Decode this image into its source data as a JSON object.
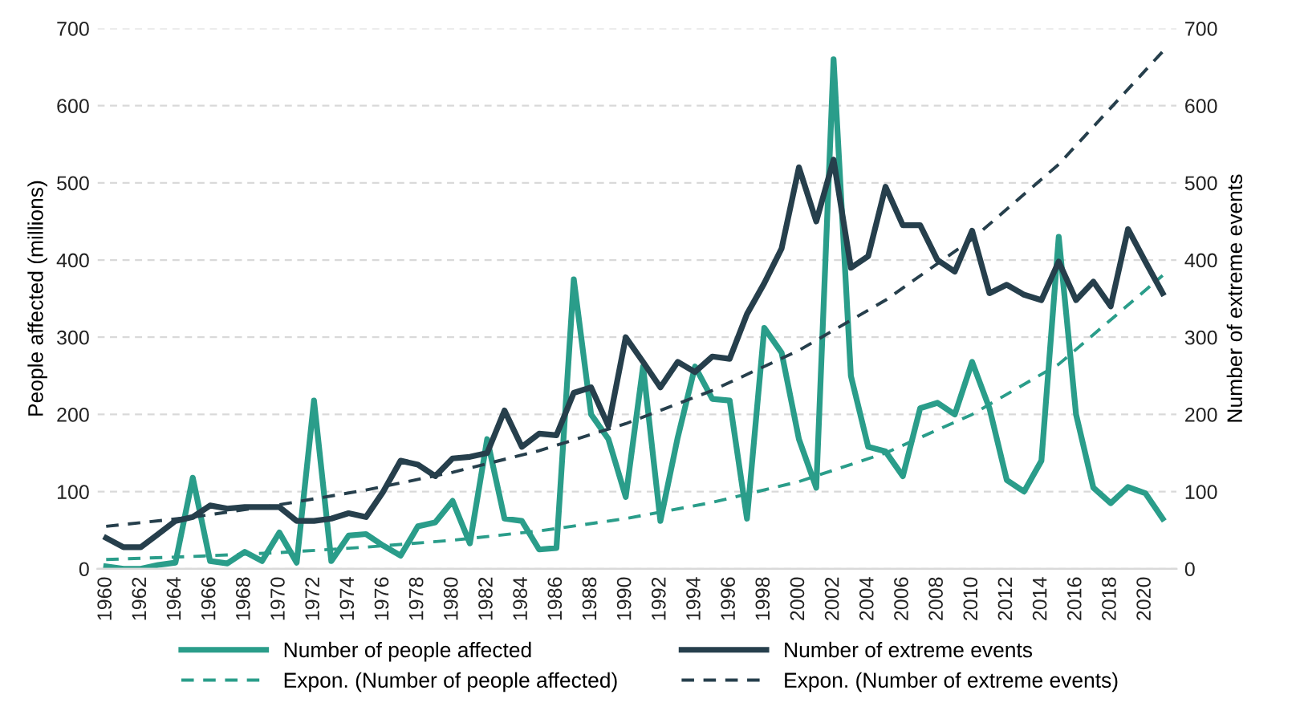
{
  "chart_data": {
    "type": "line",
    "ylabel": "People affected (millions)",
    "y2label": "Number of extreme events",
    "x": [
      1960,
      1961,
      1962,
      1963,
      1964,
      1965,
      1966,
      1967,
      1968,
      1969,
      1970,
      1971,
      1972,
      1973,
      1974,
      1975,
      1976,
      1977,
      1978,
      1979,
      1980,
      1981,
      1982,
      1983,
      1984,
      1985,
      1986,
      1987,
      1988,
      1989,
      1990,
      1991,
      1992,
      1993,
      1994,
      1995,
      1996,
      1997,
      1998,
      1999,
      2000,
      2001,
      2002,
      2003,
      2004,
      2005,
      2006,
      2007,
      2008,
      2009,
      2010,
      2011,
      2012,
      2013,
      2014,
      2015,
      2016,
      2017,
      2018,
      2019,
      2020,
      2021
    ],
    "xlim": [
      1959.5,
      2021.8
    ],
    "xticks": [
      1960,
      1962,
      1964,
      1966,
      1968,
      1970,
      1972,
      1974,
      1976,
      1978,
      1980,
      1982,
      1984,
      1986,
      1988,
      1990,
      1992,
      1994,
      1996,
      1998,
      2000,
      2002,
      2004,
      2006,
      2008,
      2010,
      2012,
      2014,
      2016,
      2018,
      2020
    ],
    "ylim": [
      0,
      700
    ],
    "yticks": [
      0,
      100,
      200,
      300,
      400,
      500,
      600,
      700
    ],
    "y2lim": [
      0,
      700
    ],
    "y2ticks": [
      0,
      100,
      200,
      300,
      400,
      500,
      600,
      700
    ],
    "grid": "y",
    "legend": "bottom",
    "marker": "none",
    "series": [
      {
        "name": "Number of people affected",
        "color": "#2a9d8a",
        "line_style": "solid",
        "values": [
          3,
          0,
          0,
          5,
          8,
          118,
          10,
          7,
          22,
          10,
          47,
          8,
          218,
          10,
          43,
          45,
          30,
          17,
          55,
          60,
          88,
          33,
          168,
          65,
          62,
          25,
          27,
          375,
          200,
          168,
          93,
          262,
          62,
          170,
          262,
          220,
          218,
          65,
          312,
          280,
          168,
          105,
          660,
          250,
          158,
          152,
          120,
          208,
          215,
          200,
          268,
          208,
          115,
          100,
          140,
          430,
          200,
          105,
          85,
          106,
          98,
          65
        ]
      },
      {
        "name": "Number of extreme events",
        "color": "#263f4c",
        "line_style": "solid",
        "axis": "y2",
        "values": [
          40,
          28,
          28,
          45,
          62,
          67,
          82,
          78,
          80,
          80,
          80,
          62,
          62,
          65,
          72,
          67,
          100,
          140,
          135,
          120,
          143,
          145,
          150,
          205,
          158,
          175,
          173,
          228,
          235,
          185,
          300,
          268,
          235,
          268,
          255,
          275,
          272,
          330,
          370,
          415,
          520,
          450,
          530,
          390,
          405,
          495,
          445,
          445,
          400,
          385,
          438,
          357,
          368,
          355,
          348,
          398,
          348,
          372,
          340,
          440,
          398,
          357
        ]
      },
      {
        "name": "Expon. (Number of people affected)",
        "color": "#2a9d8a",
        "line_style": "dashed",
        "x": [
          1960,
          1965,
          1970,
          1975,
          1980,
          1985,
          1990,
          1995,
          2000,
          2005,
          2010,
          2015,
          2021
        ],
        "values": [
          12,
          16,
          21,
          28,
          37,
          49,
          65,
          86,
          113,
          150,
          200,
          265,
          380
        ]
      },
      {
        "name": "Expon. (Number of extreme events)",
        "color": "#263f4c",
        "line_style": "dashed",
        "axis": "y2",
        "x": [
          1960,
          1965,
          1970,
          1975,
          1980,
          1985,
          1990,
          1995,
          2000,
          2005,
          2010,
          2015,
          2021
        ],
        "values": [
          55,
          67,
          83,
          102,
          125,
          153,
          188,
          231,
          283,
          348,
          427,
          524,
          670
        ]
      }
    ]
  }
}
